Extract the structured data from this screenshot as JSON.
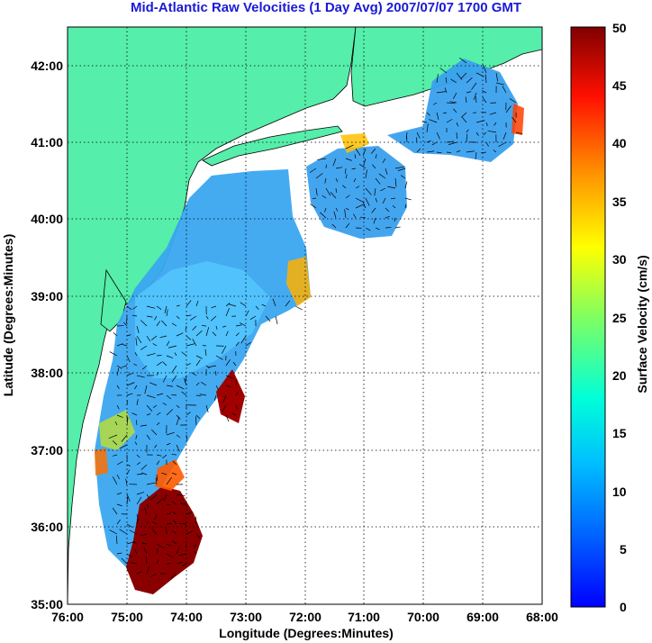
{
  "title": "Mid-Atlantic Raw Velocities (1 Day Avg) 2007/07/07 1700 GMT",
  "map": {
    "xlabel": "Longitude (Degrees:Minutes)",
    "ylabel": "Latitude (Degrees:Minutes)",
    "longitude_ticks": [
      "76:00",
      "75:00",
      "74:00",
      "73:00",
      "72:00",
      "71:00",
      "70:00",
      "69:00",
      "68:00"
    ],
    "latitude_ticks": [
      "42:00",
      "41:00",
      "40:00",
      "39:00",
      "38:00",
      "37:00",
      "36:00",
      "35:00"
    ],
    "land_color": "#55eeaa",
    "grid_style": "dotted"
  },
  "colorbar": {
    "label": "Surface Velocity (cm/s)",
    "ticks": [
      "50",
      "45",
      "40",
      "35",
      "30",
      "25",
      "20",
      "15",
      "10",
      "5",
      "0"
    ],
    "range": [
      0,
      50
    ],
    "colormap": "jet"
  }
}
